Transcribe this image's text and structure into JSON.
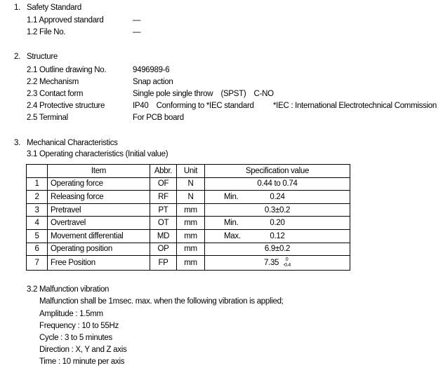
{
  "sections": [
    {
      "number": "1.",
      "title": "Safety Standard",
      "items": [
        {
          "label": "1.1 Approved standard",
          "value": "—"
        },
        {
          "label": "1.2 File No.",
          "value": "—"
        }
      ]
    },
    {
      "number": "2.",
      "title": "Structure",
      "items": [
        {
          "label": "2.1 Outline drawing No.",
          "value": "9496989-6"
        },
        {
          "label": "2.2 Mechanism",
          "value": "Snap action"
        },
        {
          "label": "2.3 Contact form",
          "value": "Single pole single throw　(SPST)　C-NO"
        },
        {
          "label": "2.4 Protective structure",
          "value": "IP40　Conforming to *IEC standard",
          "note": "*IEC : International Electrotechnical Commission"
        },
        {
          "label": "2.5 Terminal",
          "value": "For PCB board"
        }
      ]
    },
    {
      "number": "3.",
      "title": "Mechanical Characteristics"
    }
  ],
  "operating": {
    "title": "3.1 Operating characteristics (Initial value)",
    "headers": [
      "",
      "Item",
      "Abbr.",
      "Unit",
      "Specification value"
    ],
    "rows": [
      {
        "no": "1",
        "item": "Operating force",
        "abbr": "OF",
        "unit": "N",
        "qual": "",
        "value": "0.44 to 0.74"
      },
      {
        "no": "2",
        "item": "Releasing force",
        "abbr": "RF",
        "unit": "N",
        "qual": "Min.",
        "value": "0.24"
      },
      {
        "no": "3",
        "item": "Pretravel",
        "abbr": "PT",
        "unit": "mm",
        "qual": "",
        "value": "0.3±0.2"
      },
      {
        "no": "4",
        "item": "Overtravel",
        "abbr": "OT",
        "unit": "mm",
        "qual": "Min.",
        "value": "0.20"
      },
      {
        "no": "5",
        "item": "Movement differential",
        "abbr": "MD",
        "unit": "mm",
        "qual": "Max.",
        "value": "0.12"
      },
      {
        "no": "6",
        "item": "Operating position",
        "abbr": "OP",
        "unit": "mm",
        "qual": "",
        "value": "6.9±0.2"
      },
      {
        "no": "7",
        "item": "Free Position",
        "abbr": "FP",
        "unit": "mm",
        "qual": "",
        "value": "7.35",
        "tol_upper": "0",
        "tol_lower": "-0.4"
      }
    ]
  },
  "vibration": {
    "title": "3.2 Malfunction vibration",
    "lines": [
      "Malfunction shall be 1msec. max. when the following vibration is applied;",
      "Amplitude : 1.5mm",
      "Frequency : 10 to 55Hz",
      "Cycle : 3 to 5 minutes",
      "Direction : X, Y and Z axis",
      "Time : 10 minute per axis"
    ]
  }
}
